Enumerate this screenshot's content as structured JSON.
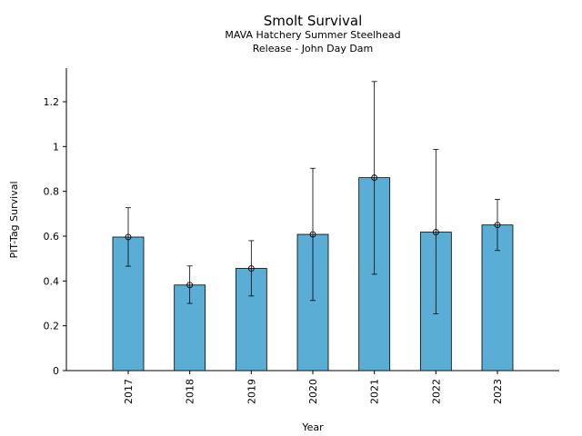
{
  "chart_data": {
    "type": "bar",
    "title": "Smolt Survival",
    "subtitle_lines": [
      "MAVA Hatchery Summer Steelhead",
      "Release - John Day Dam"
    ],
    "xlabel": "Year",
    "ylabel": "PIT-Tag Survival",
    "categories": [
      "2017",
      "2018",
      "2019",
      "2020",
      "2021",
      "2022",
      "2023"
    ],
    "values": [
      0.596,
      0.382,
      0.456,
      0.608,
      0.861,
      0.618,
      0.65
    ],
    "error_low": [
      0.466,
      0.3,
      0.333,
      0.313,
      0.43,
      0.253,
      0.536
    ],
    "error_high": [
      0.727,
      0.467,
      0.58,
      0.903,
      1.29,
      0.987,
      0.764
    ],
    "yticks": [
      0,
      0.2,
      0.4,
      0.6,
      0.8,
      1,
      1.2
    ],
    "ytick_labels": [
      "0",
      "0.2",
      "0.4",
      "0.6",
      "0.8",
      "1",
      "1.2"
    ],
    "ylim": [
      0,
      1.35
    ],
    "bar_color": "#5aaed6",
    "edge_color": "#000000",
    "grid": false,
    "legend": false
  }
}
